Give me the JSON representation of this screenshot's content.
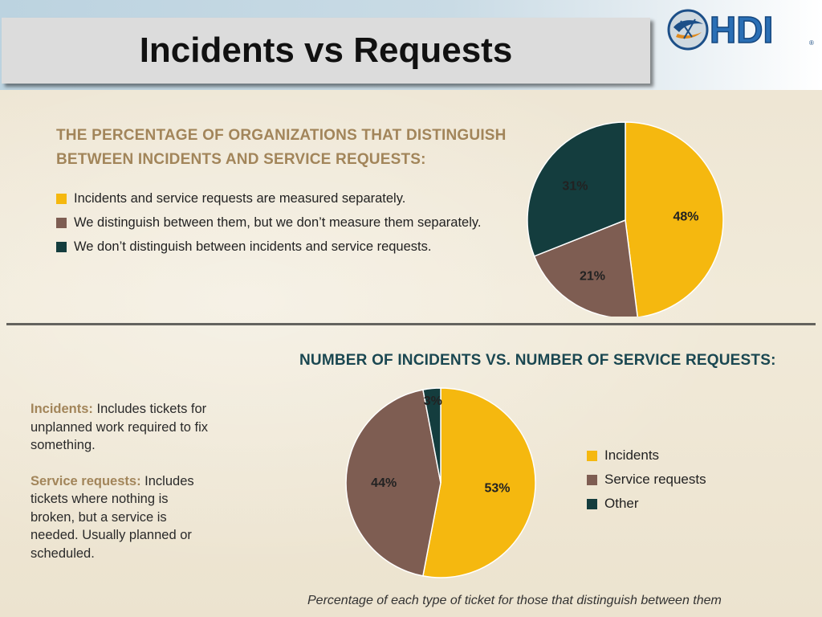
{
  "slide": {
    "title": "Incidents vs Requests"
  },
  "logo": {
    "text": "HDI"
  },
  "section1": {
    "heading_line1": "THE PERCENTAGE OF ORGANIZATIONS THAT DISTINGUISH",
    "heading_line2": "BETWEEN INCIDENTS AND SERVICE REQUESTS:"
  },
  "section2": {
    "heading": "NUMBER OF INCIDENTS VS. NUMBER OF SERVICE REQUESTS:",
    "caption": "Percentage of each type of ticket for those that distinguish between them"
  },
  "definitions": {
    "incidents_term": "Incidents:",
    "incidents_text": " Includes tickets for unplanned work required to fix something.",
    "requests_term": "Service requests:",
    "requests_text": " Includes tickets where nothing is broken, but a service is needed. Usually planned or scheduled."
  },
  "colors": {
    "gold": "#f5b80f",
    "brown": "#7e5d52",
    "teal": "#143d3e"
  },
  "chart_data": [
    {
      "type": "pie",
      "title": "THE PERCENTAGE OF ORGANIZATIONS THAT DISTINGUISH BETWEEN INCIDENTS AND SERVICE REQUESTS:",
      "categories": [
        "Incidents and service requests are measured separately.",
        "We distinguish between them, but we don’t measure them separately.",
        "We don’t distinguish between incidents and service requests."
      ],
      "values": [
        48,
        21,
        31
      ],
      "labels": [
        "48%",
        "21%",
        "31%"
      ],
      "colors": [
        "#f5b80f",
        "#7e5d52",
        "#143d3e"
      ],
      "legend": "left"
    },
    {
      "type": "pie",
      "title": "NUMBER OF INCIDENTS VS. NUMBER OF SERVICE REQUESTS:",
      "categories": [
        "Incidents",
        "Service requests",
        "Other"
      ],
      "values": [
        53,
        44,
        3
      ],
      "labels": [
        "53%",
        "44%",
        "3%"
      ],
      "colors": [
        "#f5b80f",
        "#7e5d52",
        "#143d3e"
      ],
      "legend": "right"
    }
  ]
}
